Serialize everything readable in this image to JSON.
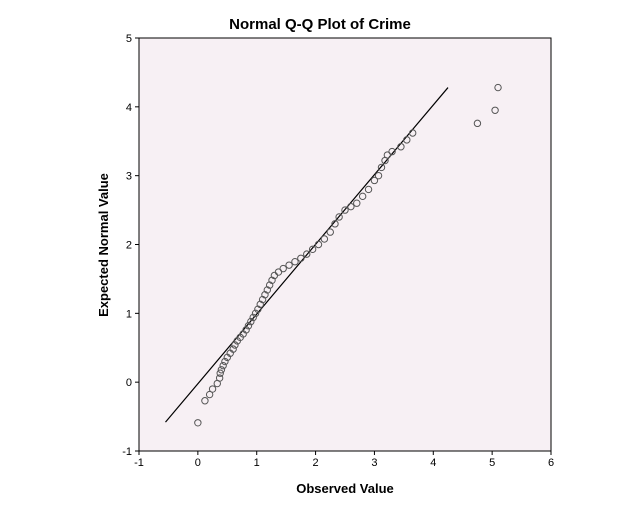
{
  "chart_data": {
    "type": "scatter",
    "title": "Normal Q-Q Plot of Crime",
    "xlabel": "Observed Value",
    "ylabel": "Expected Normal Value",
    "xlim": [
      -1,
      6
    ],
    "ylim": [
      -1,
      5
    ],
    "x_ticks": [
      "-1",
      "0",
      "1",
      "2",
      "3",
      "4",
      "5",
      "6"
    ],
    "y_ticks": [
      "-1",
      "0",
      "1",
      "2",
      "3",
      "4",
      "5"
    ],
    "background_color": "#f7f0f4",
    "marker_color": "#555555",
    "reference_line": {
      "x": [
        -0.55,
        4.25
      ],
      "y": [
        -0.58,
        4.28
      ]
    },
    "series": [
      {
        "points": [
          [
            0.0,
            -0.59
          ],
          [
            0.12,
            -0.27
          ],
          [
            0.2,
            -0.18
          ],
          [
            0.25,
            -0.1
          ],
          [
            0.33,
            -0.02
          ],
          [
            0.37,
            0.06
          ],
          [
            0.38,
            0.13
          ],
          [
            0.4,
            0.18
          ],
          [
            0.43,
            0.24
          ],
          [
            0.46,
            0.3
          ],
          [
            0.5,
            0.36
          ],
          [
            0.55,
            0.42
          ],
          [
            0.6,
            0.48
          ],
          [
            0.63,
            0.54
          ],
          [
            0.67,
            0.6
          ],
          [
            0.72,
            0.65
          ],
          [
            0.77,
            0.7
          ],
          [
            0.82,
            0.76
          ],
          [
            0.86,
            0.82
          ],
          [
            0.9,
            0.88
          ],
          [
            0.94,
            0.94
          ],
          [
            0.98,
            1.0
          ],
          [
            1.02,
            1.06
          ],
          [
            1.06,
            1.13
          ],
          [
            1.1,
            1.2
          ],
          [
            1.14,
            1.27
          ],
          [
            1.18,
            1.34
          ],
          [
            1.22,
            1.41
          ],
          [
            1.26,
            1.48
          ],
          [
            1.3,
            1.55
          ],
          [
            1.37,
            1.6
          ],
          [
            1.45,
            1.65
          ],
          [
            1.55,
            1.7
          ],
          [
            1.65,
            1.75
          ],
          [
            1.75,
            1.8
          ],
          [
            1.85,
            1.86
          ],
          [
            1.95,
            1.93
          ],
          [
            2.05,
            2.0
          ],
          [
            2.15,
            2.08
          ],
          [
            2.25,
            2.18
          ],
          [
            2.33,
            2.3
          ],
          [
            2.4,
            2.4
          ],
          [
            2.5,
            2.5
          ],
          [
            2.6,
            2.55
          ],
          [
            2.7,
            2.6
          ],
          [
            2.8,
            2.7
          ],
          [
            2.9,
            2.8
          ],
          [
            3.0,
            2.93
          ],
          [
            3.07,
            3.0
          ],
          [
            3.12,
            3.12
          ],
          [
            3.18,
            3.22
          ],
          [
            3.22,
            3.3
          ],
          [
            3.3,
            3.35
          ],
          [
            3.45,
            3.42
          ],
          [
            3.55,
            3.52
          ],
          [
            3.65,
            3.62
          ],
          [
            4.75,
            3.76
          ],
          [
            5.05,
            3.95
          ],
          [
            5.1,
            4.28
          ]
        ]
      }
    ]
  }
}
